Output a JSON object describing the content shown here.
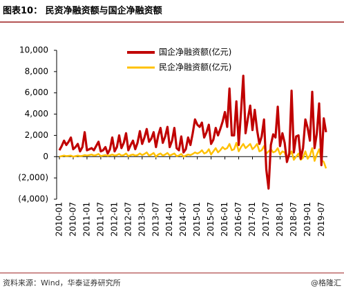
{
  "title": "图表10：  民资净融资额与国企净融资额",
  "source": "资料来源：Wind，华泰证券研究所",
  "watermark": "@格隆汇",
  "chart_data": {
    "type": "line",
    "categories": [
      "2010-01",
      null,
      null,
      null,
      null,
      null,
      "2010-07",
      null,
      null,
      null,
      null,
      null,
      "2011-01",
      null,
      null,
      null,
      null,
      null,
      "2011-07",
      null,
      null,
      null,
      null,
      null,
      "2012-01",
      null,
      null,
      null,
      null,
      null,
      "2012-07",
      null,
      null,
      null,
      null,
      null,
      "2013-01",
      null,
      null,
      null,
      null,
      null,
      "2013-07",
      null,
      null,
      null,
      null,
      null,
      "2014-01",
      null,
      null,
      null,
      null,
      null,
      "2014-07",
      null,
      null,
      null,
      null,
      null,
      "2015-01",
      null,
      null,
      null,
      null,
      null,
      "2015-07",
      null,
      null,
      null,
      null,
      null,
      "2016-01",
      null,
      null,
      null,
      null,
      null,
      "2016-07",
      null,
      null,
      null,
      null,
      null,
      "2017-01",
      null,
      null,
      null,
      null,
      null,
      "2017-07",
      null,
      null,
      null,
      null,
      null,
      "2018-01",
      null,
      null,
      null,
      null,
      null,
      "2018-07",
      null,
      null,
      null,
      null,
      null,
      "2019-01",
      null,
      null,
      null,
      null,
      null,
      "2019-07",
      null,
      null
    ],
    "series": [
      {
        "name": "国企净融资额(亿元)",
        "color": "#c00000",
        "values": [
          600,
          1000,
          1500,
          1100,
          1400,
          1800,
          700,
          900,
          1200,
          500,
          900,
          2300,
          600,
          700,
          800,
          600,
          1000,
          1400,
          500,
          600,
          900,
          300,
          700,
          1800,
          500,
          900,
          2000,
          800,
          1300,
          2200,
          600,
          1100,
          1500,
          700,
          1300,
          2400,
          1200,
          1800,
          2600,
          1400,
          1700,
          2300,
          900,
          2000,
          2700,
          1300,
          1900,
          2800,
          900,
          1500,
          2700,
          800,
          600,
          1900,
          400,
          700,
          1800,
          1100,
          2200,
          3500,
          3000,
          2800,
          3200,
          1800,
          2300,
          3000,
          1200,
          1600,
          2700,
          2000,
          2600,
          3300,
          4200,
          2800,
          6400,
          2000,
          2000,
          5200,
          1100,
          4200,
          7600,
          2200,
          3600,
          4800,
          2500,
          4400,
          2500,
          1200,
          1900,
          3500,
          -1200,
          -3000,
          1100,
          2100,
          1800,
          4700,
          1000,
          2200,
          1300,
          -500,
          300,
          6200,
          400,
          1900,
          2000,
          -200,
          800,
          3500,
          2700,
          1500,
          6100,
          800,
          2200,
          5000,
          -800,
          3600,
          2300
        ]
      },
      {
        "name": "民企净融资额(亿元)",
        "color": "#ffc000",
        "values": [
          0,
          50,
          100,
          50,
          80,
          100,
          0,
          50,
          100,
          50,
          80,
          150,
          100,
          150,
          200,
          100,
          150,
          250,
          50,
          100,
          150,
          80,
          120,
          200,
          100,
          150,
          250,
          100,
          150,
          300,
          50,
          150,
          200,
          100,
          150,
          300,
          150,
          250,
          400,
          100,
          200,
          350,
          0,
          200,
          300,
          100,
          200,
          350,
          100,
          200,
          300,
          50,
          100,
          250,
          0,
          100,
          200,
          150,
          250,
          400,
          300,
          400,
          600,
          300,
          400,
          700,
          200,
          500,
          800,
          400,
          600,
          900,
          700,
          800,
          1200,
          600,
          700,
          1300,
          500,
          900,
          1200,
          800,
          1000,
          1200,
          700,
          900,
          1200,
          500,
          600,
          1000,
          300,
          500,
          700,
          400,
          500,
          800,
          200,
          500,
          400,
          -200,
          100,
          500,
          -300,
          0,
          300,
          -300,
          -100,
          500,
          -200,
          100,
          800,
          -400,
          200,
          700,
          -300,
          -500,
          -1100
        ]
      }
    ],
    "ylim": [
      -4000,
      10000
    ],
    "yticks": [
      {
        "value": -4000,
        "label": "(4,000)"
      },
      {
        "value": -2000,
        "label": "(2,000)"
      },
      0,
      {
        "value": 2000,
        "label": "2,000"
      },
      {
        "value": 4000,
        "label": "4,000"
      },
      {
        "value": 6000,
        "label": "6,000"
      },
      {
        "value": 8000,
        "label": "8,000"
      },
      {
        "value": 10000,
        "label": "10,000"
      }
    ]
  }
}
